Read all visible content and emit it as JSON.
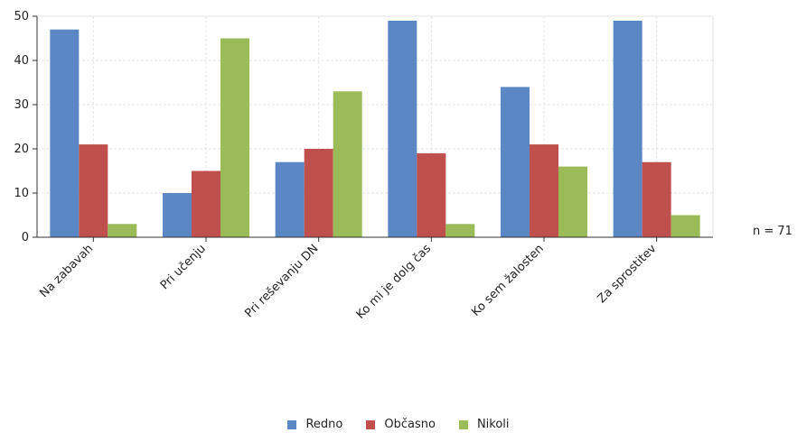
{
  "chart_data": {
    "type": "bar",
    "categories": [
      "Na zabavah",
      "Pri učenju",
      "Pri reševanju DN",
      "Ko mi je dolg čas",
      "Ko sem žalosten",
      "Za sprostitev"
    ],
    "series": [
      {
        "name": "Redno",
        "color": "#5b87c5",
        "values": [
          47,
          10,
          17,
          49,
          34,
          49
        ]
      },
      {
        "name": "Občasno",
        "color": "#c0504d",
        "values": [
          21,
          15,
          20,
          19,
          21,
          17
        ]
      },
      {
        "name": "Nikoli",
        "color": "#9bbb59",
        "values": [
          3,
          45,
          33,
          3,
          16,
          5
        ]
      }
    ],
    "yticks": [
      0,
      10,
      20,
      30,
      40,
      50
    ],
    "ylim": [
      0,
      50
    ],
    "grid": true,
    "legend": "bottom-center",
    "note": "n = 71"
  }
}
